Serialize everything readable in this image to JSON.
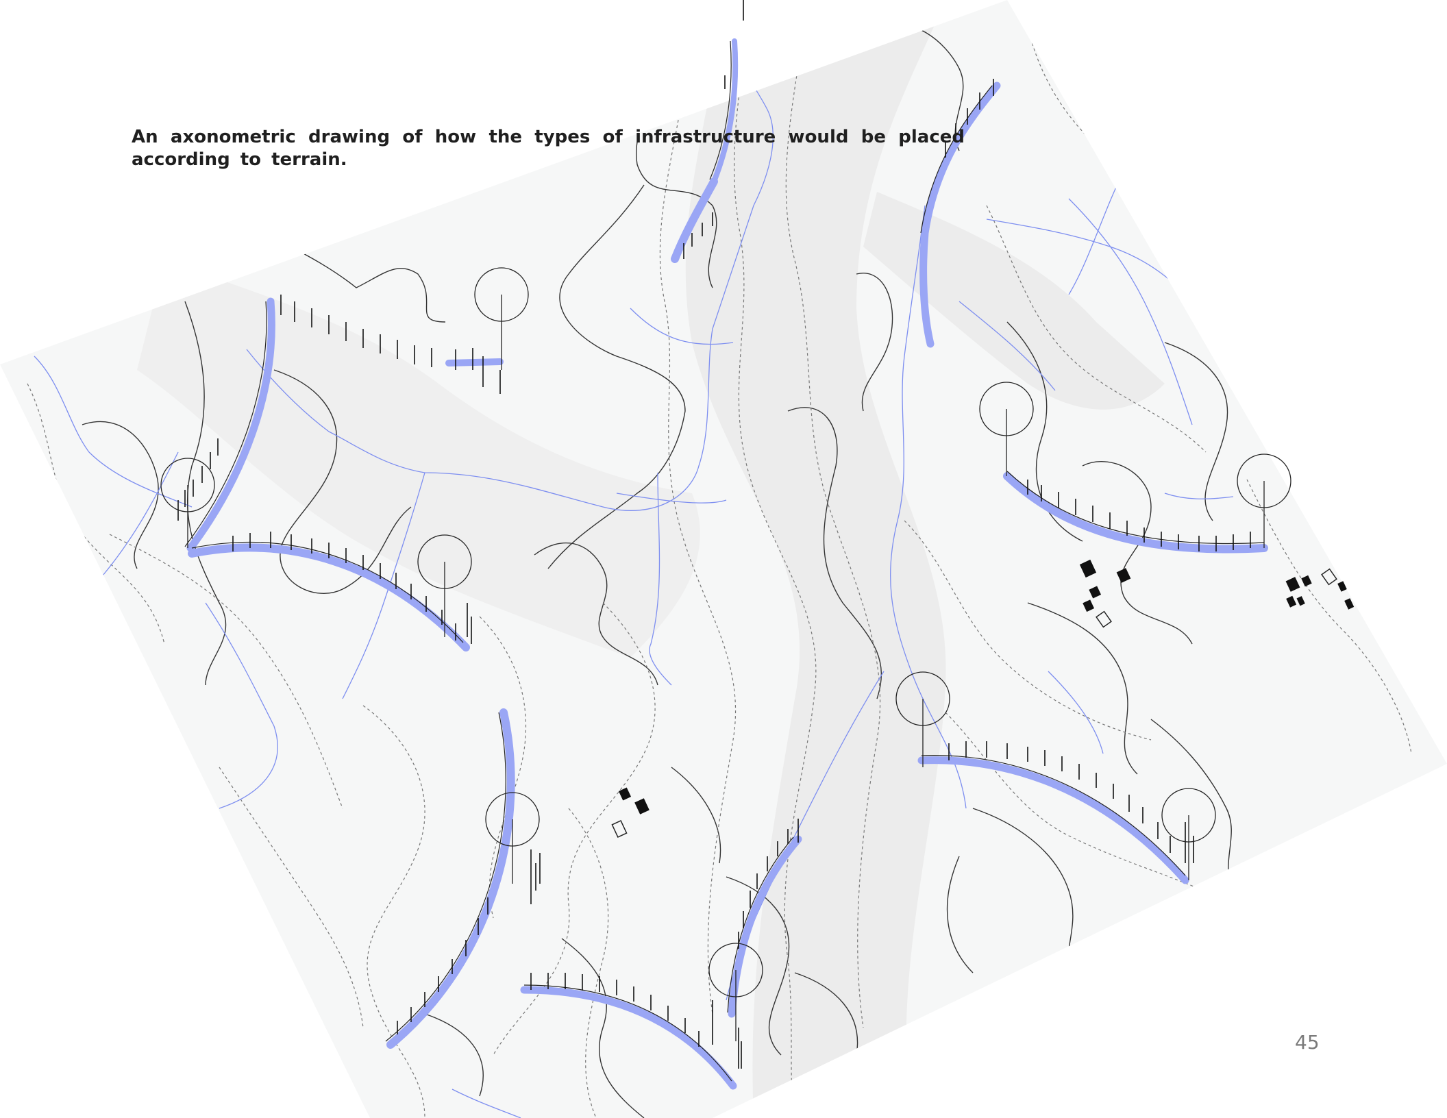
{
  "caption": "An axonometric drawing of how the types of infrastructure would be placed according to terrain.",
  "page_number": "45",
  "colors": {
    "terrain": "#f6f7f7",
    "valley": "#ececec",
    "contour": "#333333",
    "dashed_contour": "#777777",
    "stream": "#7d8ef0",
    "infrastructure": "#9aa6f5",
    "building": "#111111"
  },
  "icons": [
    "suspension-tower-icon",
    "building-block-icon"
  ]
}
